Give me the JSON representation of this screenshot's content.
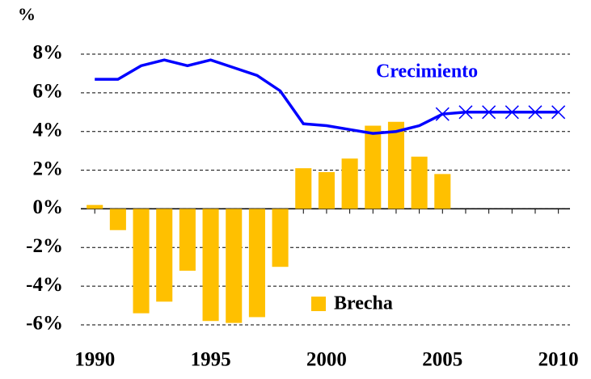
{
  "chart_data": {
    "type": "bar_line",
    "y_unit_label": "%",
    "x": [
      1990,
      1991,
      1992,
      1993,
      1994,
      1995,
      1996,
      1997,
      1998,
      1999,
      2000,
      2001,
      2002,
      2003,
      2004,
      2005,
      2006,
      2007,
      2008,
      2009,
      2010
    ],
    "xlim": [
      1989.4,
      2010.5
    ],
    "xticks": [
      1990,
      1995,
      2000,
      2005,
      2010
    ],
    "ylim": [
      -6,
      8
    ],
    "yticks": [
      {
        "value": -6,
        "label": "-6%"
      },
      {
        "value": -4,
        "label": "-4%"
      },
      {
        "value": -2,
        "label": "-2%"
      },
      {
        "value": 0,
        "label": "0%"
      },
      {
        "value": 2,
        "label": "2%"
      },
      {
        "value": 4,
        "label": "4%"
      },
      {
        "value": 6,
        "label": "6%"
      },
      {
        "value": 8,
        "label": "8%"
      }
    ],
    "grid": true,
    "series": [
      {
        "name": "Brecha",
        "type": "bar",
        "color": "#ffc000",
        "values": [
          0.2,
          -1.1,
          -5.4,
          -4.8,
          -3.2,
          -5.8,
          -5.9,
          -5.6,
          -3.0,
          2.1,
          1.9,
          2.6,
          4.3,
          4.5,
          2.7,
          1.8,
          null,
          null,
          null,
          null,
          null
        ]
      },
      {
        "name": "Crecimiento",
        "type": "line",
        "color": "#0000ff",
        "values": [
          6.7,
          6.7,
          7.4,
          7.7,
          7.4,
          7.7,
          7.3,
          6.9,
          6.1,
          4.4,
          4.3,
          4.1,
          3.9,
          4.0,
          4.3,
          4.9,
          5.0,
          5.0,
          5.0,
          5.0,
          5.0
        ]
      }
    ]
  }
}
